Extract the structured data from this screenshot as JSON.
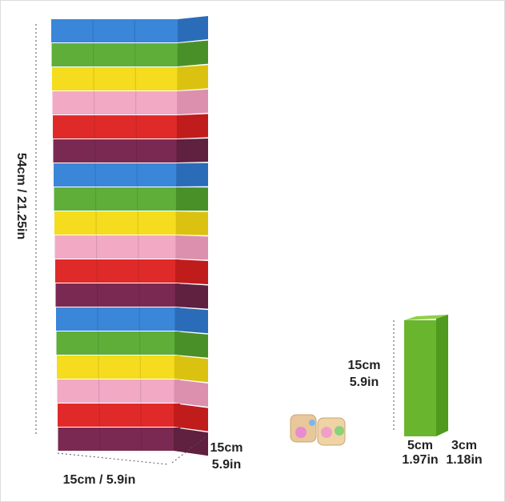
{
  "height_label": "54cm / 21.25in",
  "width_label": "15cm / 5.9in",
  "depth_label": {
    "cm": "15cm",
    "in": "5.9in"
  },
  "block": {
    "length": {
      "cm": "15cm",
      "in": "5.9in"
    },
    "width": {
      "cm": "5cm",
      "in": "1.97in"
    },
    "depth": {
      "cm": "3cm",
      "in": "1.18in"
    }
  }
}
